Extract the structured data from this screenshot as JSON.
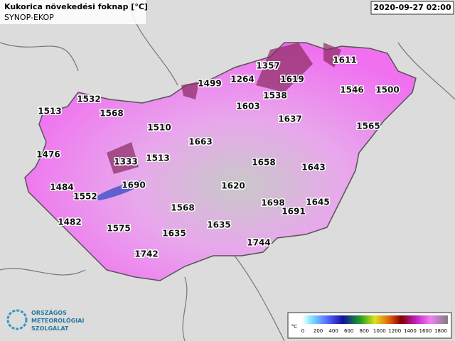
{
  "header": {
    "title": "Kukorica növekedési foknap [°C]",
    "source": "SYNOP-EKOP",
    "datetime": "2020-09-27 02:00"
  },
  "stations": [
    "1611",
    "1357",
    "1499",
    "1264",
    "1619",
    "1538",
    "1546",
    "1500",
    "1603",
    "1532",
    "1513",
    "1568",
    "1637",
    "1565",
    "1510",
    "1663",
    "1476",
    "1333",
    "1513",
    "1658",
    "1643",
    "1484",
    "1552",
    "1690",
    "1620",
    "1698",
    "1691",
    "1645",
    "1568",
    "1482",
    "1575",
    "1635",
    "1635",
    "1744",
    "1742"
  ],
  "legend": {
    "unit": "°C",
    "ticks": [
      0,
      200,
      400,
      600,
      800,
      1000,
      1200,
      1400,
      1600,
      1800
    ]
  },
  "logo": {
    "lines": [
      "ORSZÁGOS",
      "METEOROLÓGIAI",
      "SZOLGÁLAT"
    ]
  }
}
